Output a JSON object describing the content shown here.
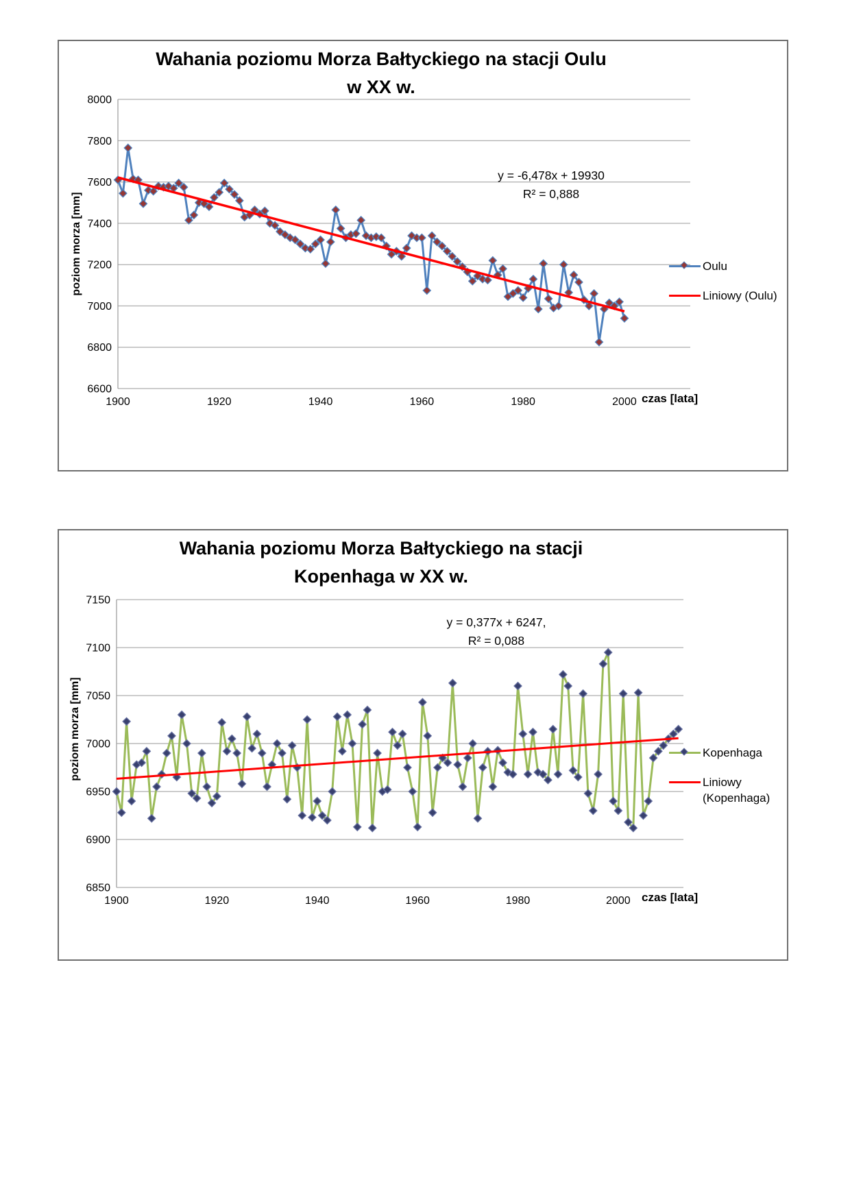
{
  "chart_data": [
    {
      "type": "line",
      "title": [
        "Wahania poziomu Morza Bałtyckiego na stacji Oulu",
        "w XX w."
      ],
      "xlabel": "czas [lata]",
      "ylabel": "poziom morza [mm]",
      "ylim": [
        6600,
        8000
      ],
      "xlim": [
        1900,
        2013
      ],
      "yticks": [
        6600,
        6800,
        7000,
        7200,
        7400,
        7600,
        7800,
        8000
      ],
      "xticks": [
        1900,
        1920,
        1940,
        1960,
        1980,
        2000
      ],
      "grid": true,
      "legend_position": "right",
      "annotation": [
        "y = -6,478x + 19930",
        "R² = 0,888"
      ],
      "series": [
        {
          "name": "Oulu",
          "kind": "line+diamond-markers",
          "color": "#4F81BD",
          "marker_fill": "#953735",
          "marker_stroke": "#4F81BD",
          "x_start": 1900,
          "values": [
            7610,
            7545,
            7765,
            7615,
            7610,
            7495,
            7560,
            7555,
            7580,
            7575,
            7580,
            7570,
            7595,
            7575,
            7415,
            7440,
            7500,
            7495,
            7480,
            7525,
            7550,
            7595,
            7565,
            7540,
            7510,
            7430,
            7440,
            7465,
            7445,
            7460,
            7400,
            7390,
            7360,
            7345,
            7330,
            7320,
            7300,
            7280,
            7275,
            7300,
            7320,
            7205,
            7310,
            7465,
            7375,
            7330,
            7345,
            7350,
            7415,
            7340,
            7330,
            7335,
            7330,
            7290,
            7250,
            7265,
            7240,
            7280,
            7340,
            7330,
            7330,
            7075,
            7340,
            7310,
            7290,
            7265,
            7240,
            7215,
            7190,
            7165,
            7120,
            7145,
            7130,
            7125,
            7220,
            7150,
            7180,
            7045,
            7060,
            7075,
            7040,
            7085,
            7130,
            6985,
            7205,
            7035,
            6990,
            7000,
            7200,
            7065,
            7150,
            7115,
            7030,
            7000,
            7060,
            6825,
            6985,
            7015,
            7000,
            7020,
            6940
          ]
        }
      ],
      "trend": {
        "name": "Liniowy (Oulu)",
        "color": "#FF0000",
        "slope": -6.478,
        "intercept": 19930,
        "x_range": [
          1900,
          2000
        ]
      }
    },
    {
      "type": "line",
      "title": [
        "Wahania poziomu Morza Bałtyckiego na stacji",
        "Kopenhaga  w XX w."
      ],
      "xlabel": "czas [lata]",
      "ylabel": "poziom morza [mm]",
      "ylim": [
        6850,
        7150
      ],
      "xlim": [
        1900,
        2013
      ],
      "yticks": [
        6850,
        6900,
        6950,
        7000,
        7050,
        7100,
        7150
      ],
      "xticks": [
        1900,
        1920,
        1940,
        1960,
        1980,
        2000
      ],
      "grid": true,
      "legend_position": "right",
      "annotation": [
        "y = 0,377x + 6247,",
        "R² = 0,088"
      ],
      "series": [
        {
          "name": "Kopenhaga",
          "kind": "line+diamond-markers",
          "color": "#9BBB59",
          "marker_fill": "#38406E",
          "marker_stroke": "#6670A0",
          "x_start": 1900,
          "values": [
            6950,
            6928,
            7023,
            6940,
            6978,
            6980,
            6992,
            6922,
            6955,
            6968,
            6990,
            7008,
            6965,
            7030,
            7000,
            6948,
            6943,
            6990,
            6955,
            6938,
            6945,
            7022,
            6992,
            7005,
            6990,
            6958,
            7028,
            6995,
            7010,
            6990,
            6955,
            6978,
            7000,
            6990,
            6942,
            6998,
            6975,
            6925,
            7025,
            6923,
            6940,
            6925,
            6920,
            6950,
            7028,
            6992,
            7030,
            7000,
            6913,
            7020,
            7035,
            6912,
            6990,
            6950,
            6952,
            7012,
            6998,
            7010,
            6975,
            6950,
            6913,
            7043,
            7008,
            6928,
            6975,
            6985,
            6980,
            7063,
            6978,
            6955,
            6985,
            7000,
            6922,
            6975,
            6992,
            6955,
            6993,
            6980,
            6970,
            6968,
            7060,
            7010,
            6968,
            7012,
            6970,
            6968,
            6962,
            7015,
            6968,
            7072,
            7060,
            6972,
            6965,
            7052,
            6948,
            6930,
            6968,
            7083,
            7095,
            6940,
            6930,
            7052,
            6918,
            6912,
            7053,
            6925,
            6940,
            6985,
            6992,
            6998,
            7005,
            7010,
            7015
          ]
        }
      ],
      "trend": {
        "name": "Liniowy (Kopenhaga)",
        "color": "#FF0000",
        "slope": 0.377,
        "intercept": 6247,
        "x_range": [
          1900,
          2012
        ]
      }
    }
  ]
}
